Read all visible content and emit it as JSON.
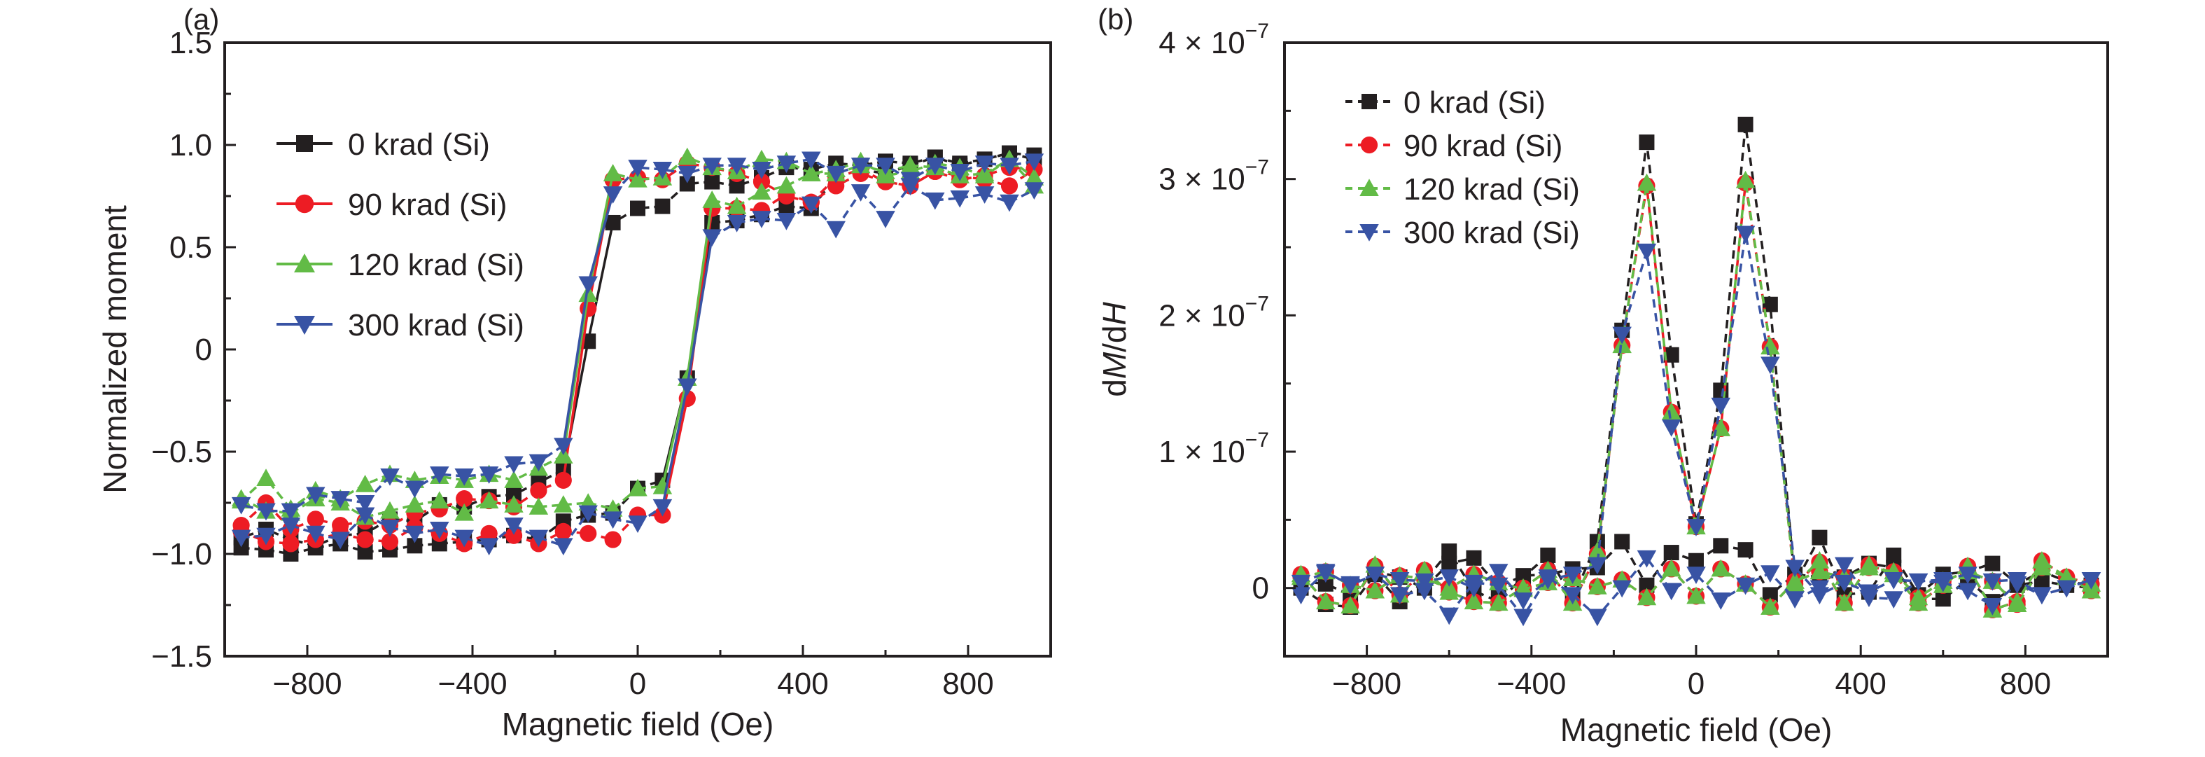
{
  "figure": {
    "panels": [
      "(a)",
      "(b)"
    ]
  },
  "chart_data": [
    {
      "type": "line",
      "panel_label": "(a)",
      "title": "",
      "xlabel": "Magnetic field (Oe)",
      "ylabel": "Normalized moment",
      "xlim": [
        -1000,
        1000
      ],
      "ylim": [
        -1.5,
        1.5
      ],
      "xticks": [
        -800,
        -400,
        0,
        400,
        800
      ],
      "xtick_labels": [
        "−800",
        "−400",
        "0",
        "400",
        "800"
      ],
      "yticks": [
        1.5,
        1.0,
        0.5,
        0,
        -0.5,
        -1.0,
        -1.5
      ],
      "ytick_labels": [
        "1.5",
        "1.0",
        "0.5",
        "0",
        "−0.5",
        "−1.0",
        "−1.5"
      ],
      "grid": false,
      "legend_position": "top-left",
      "x_descending_branch": [
        960,
        900,
        840,
        780,
        720,
        660,
        600,
        540,
        480,
        420,
        360,
        300,
        240,
        180,
        120,
        60,
        0,
        -60,
        -120,
        -180,
        -240,
        -300,
        -360,
        -420,
        -480,
        -540,
        -600,
        -660,
        -720,
        -780,
        -840,
        -900,
        -960
      ],
      "x_ascending_branch": [
        -960,
        -900,
        -840,
        -780,
        -720,
        -660,
        -600,
        -540,
        -480,
        -420,
        -360,
        -300,
        -240,
        -180,
        -120,
        -60,
        0,
        60,
        120,
        180,
        240,
        300,
        360,
        420,
        480,
        540,
        600,
        660,
        720,
        780,
        840,
        900,
        960
      ],
      "series": [
        {
          "name": "0 krad (Si)",
          "color": "#231f20",
          "marker": "square",
          "descending": [
            0.95,
            0.96,
            0.93,
            0.9,
            0.94,
            0.91,
            0.92,
            0.9,
            0.91,
            0.88,
            0.89,
            0.84,
            0.8,
            0.82,
            0.81,
            0.7,
            0.69,
            0.62,
            0.04,
            -0.59,
            -0.65,
            -0.71,
            -0.72,
            -0.77,
            -0.76,
            -0.84,
            -0.83,
            -0.9,
            -0.91,
            -0.96,
            -0.93,
            -0.88,
            -0.92
          ],
          "ascending": [
            -0.97,
            -0.98,
            -1.0,
            -0.97,
            -0.95,
            -0.99,
            -0.98,
            -0.96,
            -0.95,
            -0.94,
            -0.93,
            -0.91,
            -0.93,
            -0.84,
            -0.81,
            -0.8,
            -0.68,
            -0.64,
            -0.14,
            0.62,
            0.63,
            0.66,
            0.7,
            0.69,
            0.84,
            0.88,
            0.86,
            0.9,
            0.94,
            0.91,
            0.93,
            0.96,
            0.93
          ]
        },
        {
          "name": "90 krad (Si)",
          "color": "#ed1c24",
          "marker": "circle",
          "descending": [
            0.88,
            0.89,
            0.85,
            0.83,
            0.87,
            0.8,
            0.82,
            0.86,
            0.8,
            0.72,
            0.75,
            0.82,
            0.86,
            0.89,
            0.91,
            0.83,
            0.84,
            0.83,
            0.2,
            -0.64,
            -0.69,
            -0.77,
            -0.74,
            -0.73,
            -0.78,
            -0.8,
            -0.86,
            -0.84,
            -0.86,
            -0.83,
            -0.88,
            -0.75,
            -0.86
          ],
          "ascending": [
            -0.89,
            -0.94,
            -0.95,
            -0.93,
            -0.9,
            -0.93,
            -0.94,
            -0.87,
            -0.9,
            -0.95,
            -0.9,
            -0.91,
            -0.95,
            -0.89,
            -0.9,
            -0.93,
            -0.81,
            -0.81,
            -0.24,
            0.69,
            0.69,
            0.68,
            0.76,
            0.72,
            0.84,
            0.88,
            0.82,
            0.8,
            0.87,
            0.85,
            0.83,
            0.8,
            0.88
          ]
        },
        {
          "name": "120 krad (Si)",
          "color": "#62bb46",
          "marker": "triangle-up",
          "descending": [
            0.8,
            0.93,
            0.85,
            0.89,
            0.91,
            0.87,
            0.85,
            0.92,
            0.88,
            0.86,
            0.92,
            0.93,
            0.87,
            0.89,
            0.94,
            0.84,
            0.83,
            0.86,
            0.27,
            -0.52,
            -0.58,
            -0.64,
            -0.61,
            -0.64,
            -0.62,
            -0.64,
            -0.61,
            -0.66,
            -0.73,
            -0.69,
            -0.78,
            -0.63,
            -0.74
          ],
          "ascending": [
            -0.73,
            -0.79,
            -0.8,
            -0.73,
            -0.75,
            -0.82,
            -0.79,
            -0.76,
            -0.74,
            -0.8,
            -0.74,
            -0.76,
            -0.77,
            -0.76,
            -0.75,
            -0.78,
            -0.68,
            -0.67,
            -0.14,
            0.73,
            0.7,
            0.77,
            0.8,
            0.86,
            0.86,
            0.9,
            0.87,
            0.9,
            0.89,
            0.85,
            0.86,
            0.93,
            0.84
          ]
        },
        {
          "name": "300 krad (Si)",
          "color": "#3853a4",
          "marker": "triangle-down",
          "descending": [
            0.92,
            0.9,
            0.91,
            0.87,
            0.9,
            0.83,
            0.9,
            0.9,
            0.86,
            0.93,
            0.91,
            0.88,
            0.9,
            0.9,
            0.86,
            0.88,
            0.89,
            0.76,
            0.32,
            -0.47,
            -0.55,
            -0.56,
            -0.61,
            -0.62,
            -0.61,
            -0.68,
            -0.62,
            -0.75,
            -0.73,
            -0.71,
            -0.79,
            -0.79,
            -0.76
          ],
          "ascending": [
            -0.92,
            -0.91,
            -0.86,
            -0.9,
            -0.93,
            -0.81,
            -0.87,
            -0.9,
            -0.88,
            -0.92,
            -0.96,
            -0.86,
            -0.92,
            -0.96,
            -0.8,
            -0.83,
            -0.85,
            -0.77,
            -0.18,
            0.55,
            0.62,
            0.64,
            0.63,
            0.71,
            0.59,
            0.77,
            0.64,
            0.8,
            0.73,
            0.74,
            0.76,
            0.72,
            0.78
          ]
        }
      ]
    },
    {
      "type": "line",
      "panel_label": "(b)",
      "title": "",
      "xlabel": "Magnetic field (Oe)",
      "ylabel_parts": [
        "d",
        "M",
        "/d",
        "H"
      ],
      "ylabel": "dM/dH",
      "xlim": [
        -1000,
        1000
      ],
      "ylim": [
        -5e-08,
        4e-07
      ],
      "xticks": [
        -800,
        -400,
        0,
        400,
        800
      ],
      "xtick_labels": [
        "−800",
        "−400",
        "0",
        "400",
        "800"
      ],
      "yticks": [
        4e-07,
        3e-07,
        2e-07,
        1e-07,
        0
      ],
      "ytick_labels": [
        {
          "mantissa": "4 × 10",
          "exp": "−7"
        },
        {
          "mantissa": "3 × 10",
          "exp": "−7"
        },
        {
          "mantissa": "2 × 10",
          "exp": "−7"
        },
        {
          "mantissa": "1 × 10",
          "exp": "−7"
        },
        {
          "mantissa": "0",
          "exp": ""
        }
      ],
      "grid": false,
      "legend_position": "top-left",
      "x_peak_branch": [
        -960,
        -900,
        -840,
        -780,
        -720,
        -660,
        -600,
        -540,
        -480,
        -420,
        -360,
        -300,
        -240,
        -180,
        -120,
        -60,
        0,
        60,
        120,
        180,
        240,
        300,
        360,
        420,
        480,
        540,
        600,
        660,
        720,
        780,
        840,
        900,
        960
      ],
      "x_flat_branch": [
        -960,
        -900,
        -840,
        -780,
        -720,
        -660,
        -600,
        -540,
        -480,
        -420,
        -360,
        -300,
        -240,
        -180,
        -120,
        -60,
        0,
        60,
        120,
        180,
        240,
        300,
        360,
        420,
        480,
        540,
        600,
        660,
        720,
        780,
        840,
        900,
        960
      ],
      "series": [
        {
          "name": "0 krad (Si)",
          "color": "#231f20",
          "marker": "square",
          "peak_branch": [
            0.0,
            -0.12,
            -0.14,
            0.1,
            -0.1,
            0.05,
            0.27,
            -0.02,
            -0.1,
            0.08,
            0.24,
            -0.08,
            0.34,
            1.89,
            3.27,
            1.71,
            0.47,
            1.45,
            3.4,
            2.08,
            0.03,
            0.37,
            -0.05,
            -0.03,
            0.24,
            -0.05,
            0.1,
            0.12,
            0.18,
            0.03,
            0.12,
            0.05,
            0.02
          ],
          "flat_branch": [
            0.05,
            0.03,
            -0.05,
            0.12,
            0.08,
            0.0,
            0.18,
            0.22,
            0.01,
            0.09,
            0.1,
            0.14,
            0.15,
            0.34,
            0.02,
            0.26,
            0.2,
            0.31,
            0.28,
            -0.05,
            0.1,
            0.08,
            0.08,
            0.18,
            0.15,
            -0.08,
            -0.08,
            0.06,
            -0.1,
            0.02,
            0.05,
            0.02,
            0.0
          ]
        },
        {
          "name": "90 krad (Si)",
          "color": "#ed1c24",
          "marker": "circle",
          "peak_branch": [
            0.1,
            -0.1,
            -0.13,
            0.16,
            -0.05,
            0.13,
            -0.03,
            -0.1,
            -0.11,
            0.0,
            0.13,
            -0.11,
            0.25,
            1.78,
            2.95,
            1.29,
            0.45,
            1.17,
            2.97,
            1.77,
            0.03,
            0.19,
            -0.11,
            0.17,
            0.1,
            -0.11,
            0.02,
            0.16,
            -0.16,
            -0.1,
            0.2,
            0.08,
            0.03
          ],
          "flat_branch": [
            0.08,
            0.12,
            0.02,
            -0.02,
            0.09,
            0.07,
            0.0,
            0.1,
            0.04,
            -0.01,
            0.04,
            0.07,
            0.01,
            0.06,
            -0.07,
            0.14,
            -0.06,
            0.14,
            0.03,
            -0.14,
            0.05,
            0.12,
            0.08,
            0.15,
            0.12,
            -0.07,
            0.05,
            0.12,
            0.05,
            -0.12,
            0.15,
            0.08,
            -0.02
          ]
        },
        {
          "name": "120 krad (Si)",
          "color": "#62bb46",
          "marker": "triangle-up",
          "peak_branch": [
            0.1,
            -0.1,
            -0.13,
            0.17,
            -0.05,
            0.13,
            -0.03,
            -0.1,
            -0.11,
            0.0,
            0.13,
            -0.11,
            0.27,
            1.78,
            2.97,
            1.29,
            0.45,
            1.17,
            2.99,
            1.77,
            0.03,
            0.2,
            -0.11,
            0.17,
            0.1,
            -0.11,
            0.02,
            0.16,
            -0.16,
            -0.1,
            0.2,
            0.08,
            0.03
          ],
          "flat_branch": [
            0.08,
            0.12,
            0.02,
            -0.02,
            0.09,
            0.07,
            0.0,
            0.1,
            0.04,
            -0.01,
            0.04,
            0.07,
            0.01,
            0.06,
            -0.07,
            0.14,
            -0.06,
            0.14,
            0.03,
            -0.14,
            0.05,
            0.12,
            0.08,
            0.15,
            0.12,
            -0.07,
            0.05,
            0.12,
            0.05,
            -0.12,
            0.15,
            0.08,
            -0.02
          ]
        },
        {
          "name": "300 krad (Si)",
          "color": "#3853a4",
          "marker": "triangle-down",
          "peak_branch": [
            0.04,
            0.11,
            0.03,
            0.1,
            0.06,
            0.05,
            0.08,
            0.0,
            0.12,
            -0.09,
            0.06,
            0.1,
            0.17,
            1.86,
            2.47,
            1.18,
            0.45,
            1.34,
            2.6,
            1.64,
            0.15,
            -0.05,
            0.04,
            -0.03,
            0.06,
            0.05,
            0.06,
            0.1,
            0.05,
            0.06,
            -0.05,
            0.0,
            0.06
          ],
          "flat_branch": [
            -0.05,
            0.12,
            0.02,
            0.1,
            -0.05,
            -0.02,
            -0.2,
            0.04,
            0.02,
            -0.21,
            0.08,
            -0.05,
            -0.21,
            0.0,
            0.22,
            -0.02,
            0.1,
            -0.09,
            0.02,
            0.11,
            -0.08,
            0.0,
            0.17,
            -0.07,
            -0.08,
            0.05,
            0.04,
            -0.02,
            -0.13,
            0.03,
            -0.05,
            0.0,
            0.06
          ]
        }
      ],
      "y_scale_note": "values in units of 1e-7"
    }
  ]
}
